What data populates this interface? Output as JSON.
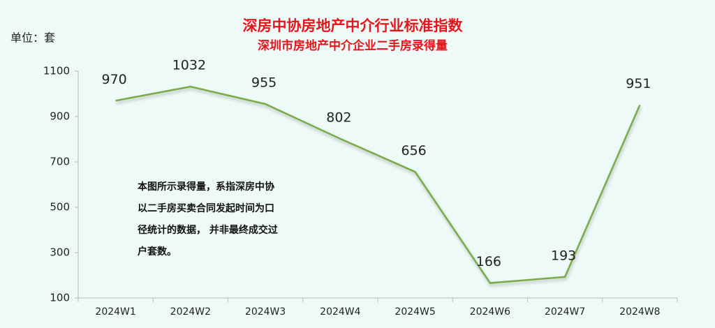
{
  "chart_data": {
    "type": "line",
    "title": "深房中协房地产中介行业标准指数",
    "subtitle": "深圳市房地产中介企业二手房录得量",
    "unit_label": "单位：套",
    "annotation": [
      "本图所示录得量，系指深房中协",
      "以二手房买卖合同发起时间为口",
      "径统计的数据， 并非最终成交过",
      "户套数。"
    ],
    "categories": [
      "2024W1",
      "2024W2",
      "2024W3",
      "2024W4",
      "2024W5",
      "2024W6",
      "2024W7",
      "2024W8"
    ],
    "values": [
      970,
      1032,
      955,
      802,
      656,
      166,
      193,
      951
    ],
    "color": "#7aab4a",
    "ylim": [
      100,
      1100
    ],
    "yticks": [
      100,
      300,
      500,
      700,
      900,
      1100
    ],
    "grid": false
  }
}
